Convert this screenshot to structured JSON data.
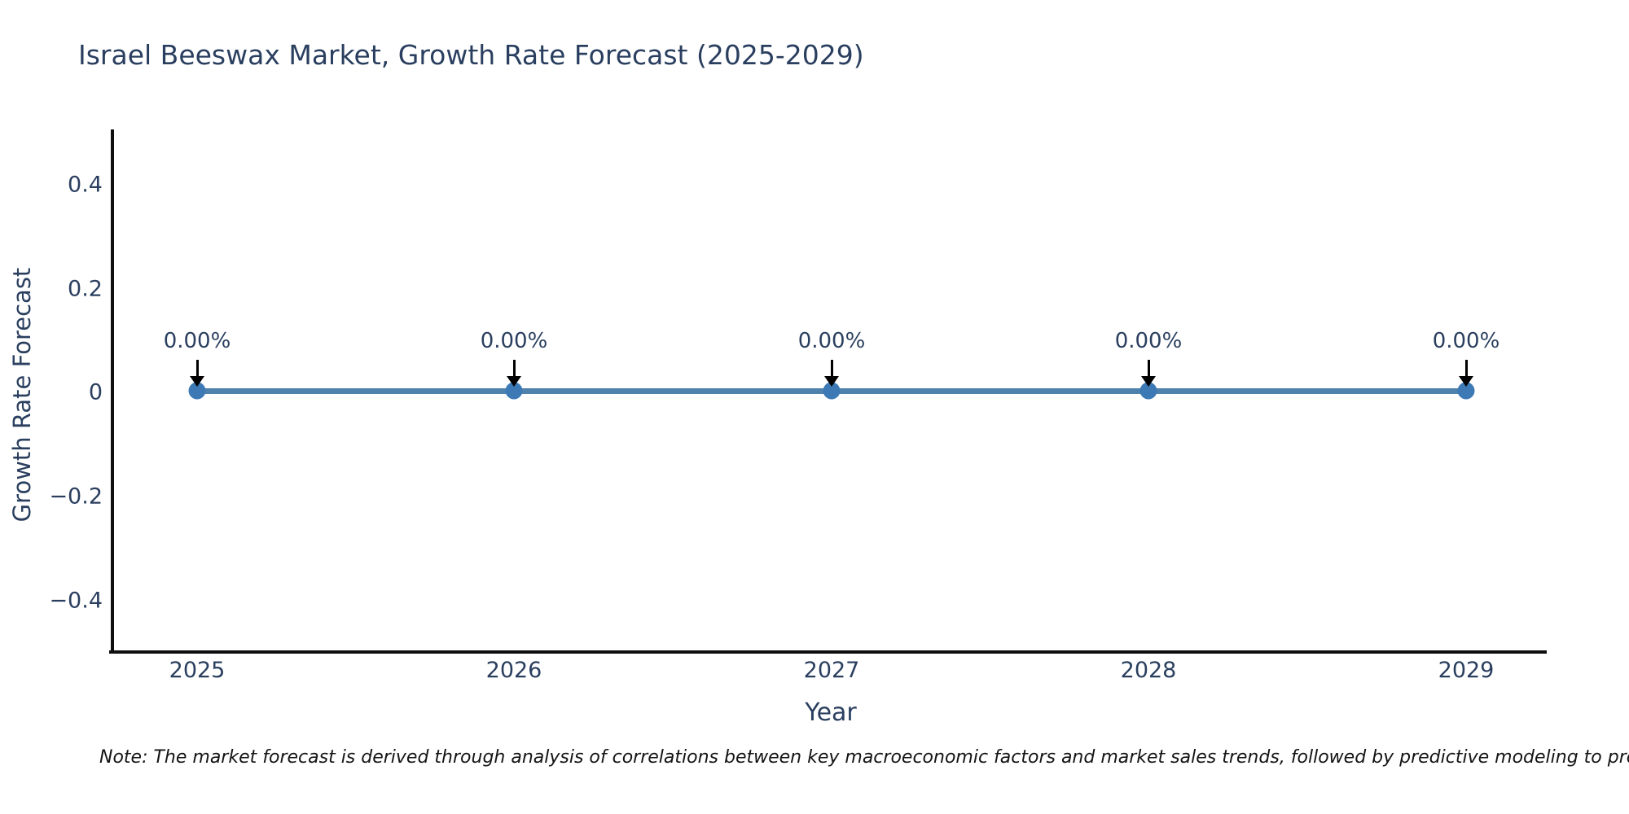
{
  "note": {
    "text": "Note: The market forecast is derived through analysis of correlations between key macroeconomic factors and market sales trends, followed by predictive modeling to project future sales."
  },
  "colors": {
    "background": "#ffffff",
    "title_text": "#2a3f5f",
    "axis_text": "#2a3f5f",
    "axis_line": "#0e0e0e",
    "series_line": "#4e82ad",
    "marker": "#3d79b5",
    "annotation_arrow": "#000000",
    "note_text": "#141414"
  },
  "chart_data": {
    "type": "line",
    "title": "Israel Beeswax Market, Growth Rate Forecast (2025-2029)",
    "xlabel": "Year",
    "ylabel": "Growth Rate Forecast",
    "categories": [
      "2025",
      "2026",
      "2027",
      "2028",
      "2029"
    ],
    "values": [
      0,
      0,
      0,
      0,
      0
    ],
    "point_labels": [
      "0.00%",
      "0.00%",
      "0.00%",
      "0.00%",
      "0.00%"
    ],
    "yticks": [
      "0.4",
      "0.2",
      "0",
      "−0.2",
      "−0.4"
    ],
    "ylim": [
      -0.5,
      0.5
    ],
    "grid": false,
    "legend_position": "none",
    "marker_shape": "circle",
    "annotations_have_arrows": true
  }
}
